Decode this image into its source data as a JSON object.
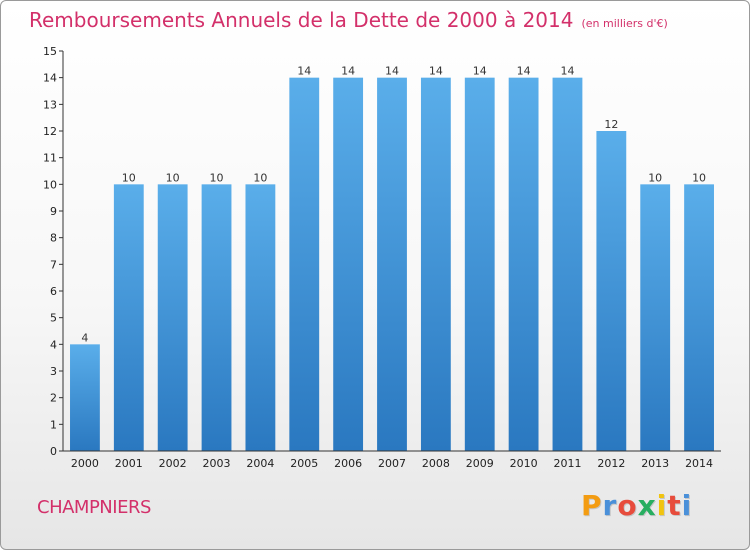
{
  "title": {
    "main": "Remboursements Annuels de la Dette de 2000 à 2014",
    "unit": "(en milliers d'€)"
  },
  "commune": "CHAMPNIERS",
  "logo": {
    "text": "Proxiti",
    "letter_colors": [
      "#f39c12",
      "#4a90d9",
      "#e74c3c",
      "#27ae60",
      "#f1c40f",
      "#e74c3c",
      "#4a90d9"
    ]
  },
  "chart_data": {
    "type": "bar",
    "title": "Remboursements Annuels de la Dette de 2000 à 2014",
    "subtitle": "(en milliers d'€)",
    "xlabel": "",
    "ylabel": "",
    "categories": [
      "2000",
      "2001",
      "2002",
      "2003",
      "2004",
      "2005",
      "2006",
      "2007",
      "2008",
      "2009",
      "2010",
      "2011",
      "2012",
      "2013",
      "2014"
    ],
    "values": [
      4,
      10,
      10,
      10,
      10,
      14,
      14,
      14,
      14,
      14,
      14,
      14,
      12,
      10,
      10
    ],
    "data_labels": [
      "4",
      "10",
      "10",
      "10",
      "10",
      "14",
      "14",
      "14",
      "14",
      "14",
      "14",
      "14",
      "12",
      "10",
      "10"
    ],
    "y_ticks": [
      0,
      1,
      2,
      3,
      4,
      5,
      6,
      7,
      8,
      9,
      10,
      11,
      12,
      13,
      14,
      15
    ],
    "ylim": [
      0,
      15
    ],
    "grid": false,
    "legend": "none",
    "bar_color": "#4d9fe0"
  }
}
